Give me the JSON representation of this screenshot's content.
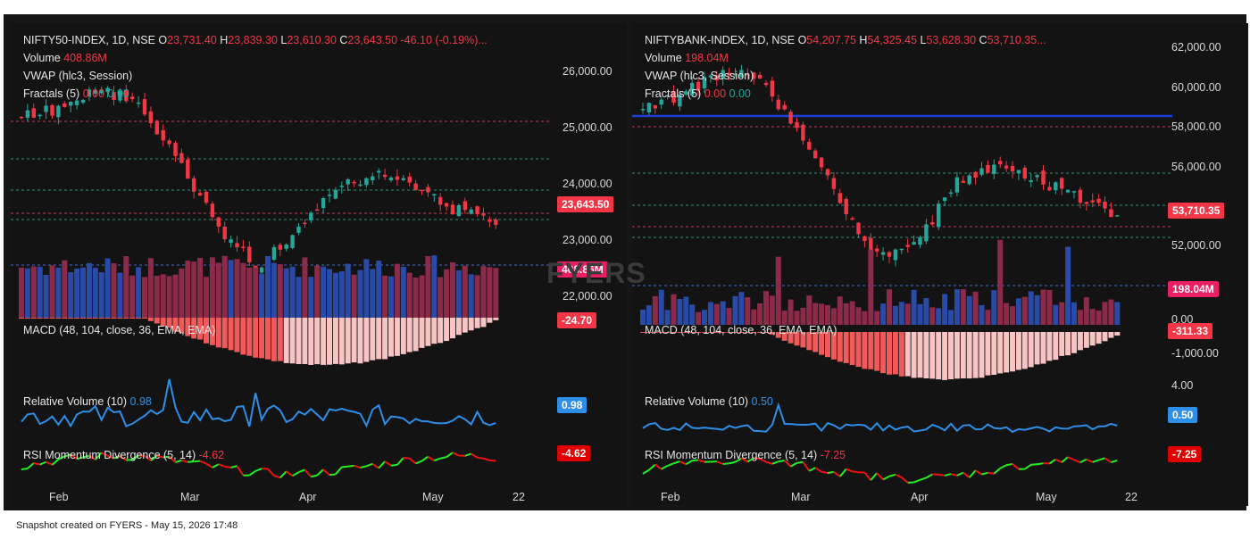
{
  "left": {
    "header": {
      "symbol": "NIFTY50-INDEX, 1D, NSE",
      "o": "23,731.40",
      "h": "23,839.30",
      "l": "23,610.30",
      "c": "23,643.50",
      "chg": "-46.10 (-0.19%)..."
    },
    "volume": {
      "label": "Volume",
      "value": "408.86M"
    },
    "vwap": {
      "label": "VWAP (hlc3, Session)"
    },
    "fractals": {
      "label": "Fractals (5)",
      "v1": "0.00",
      "v2": "0.00"
    },
    "price_axis": [
      "26,000.00",
      "25,000.00",
      "24,000.00",
      "23,000.00",
      "22,000.00"
    ],
    "price_tag": "23,643.50",
    "volume_tag": "408.86M",
    "macd": {
      "label": "MACD (48, 104, close, 36, EMA, EMA)",
      "tag": "-24.70"
    },
    "relvol": {
      "label": "Relative Volume (10)",
      "value": "0.98",
      "tag": "0.98"
    },
    "rsi": {
      "label": "RSI Momentum Divergence (5, 14)",
      "value": "-4.62",
      "tag": "-4.62"
    },
    "months": [
      "Feb",
      "Mar",
      "Apr",
      "May",
      "22"
    ]
  },
  "right": {
    "header": {
      "symbol": "NIFTYBANK-INDEX, 1D, NSE",
      "o": "54,207.75",
      "h": "54,325.45",
      "l": "53,628.30",
      "c": "53,710.35..."
    },
    "volume": {
      "label": "Volume",
      "value": "198.04M"
    },
    "vwap": {
      "label": "VWAP (hlc3, Session)"
    },
    "fractals": {
      "label": "Fractals (5)",
      "v1": "0.00",
      "v2": "0.00"
    },
    "price_axis": [
      "62,000.00",
      "60,000.00",
      "58,000.00",
      "56,000.00",
      "52,000.00",
      "0.00",
      "-1,000.00"
    ],
    "price_tag": "53,710.35",
    "volume_tag": "198.04M",
    "macd": {
      "label": "MACD (48, 104, close, 36, EMA, EMA)",
      "tag": "-311.33"
    },
    "relvol": {
      "label": "Relative Volume (10)",
      "value": "0.50",
      "axis": "4.00",
      "tag": "0.50"
    },
    "rsi": {
      "label": "RSI Momentum Divergence (5, 14)",
      "value": "-7.25",
      "tag": "-7.25"
    },
    "months": [
      "Feb",
      "Mar",
      "Apr",
      "May",
      "22"
    ]
  },
  "watermark": "FYERS",
  "footer": "Snapshot created on FYERS - May 15, 2026 17:48",
  "colors": {
    "up": "#26a69a",
    "down": "#f23645",
    "vol_up": "#2a4aa8",
    "vol_down": "#8c2a4a",
    "line": "#2e8fe8",
    "vwap": "#1f3fd8",
    "rsi_up": "#22ee22",
    "rsi_down": "#ee1111"
  }
}
